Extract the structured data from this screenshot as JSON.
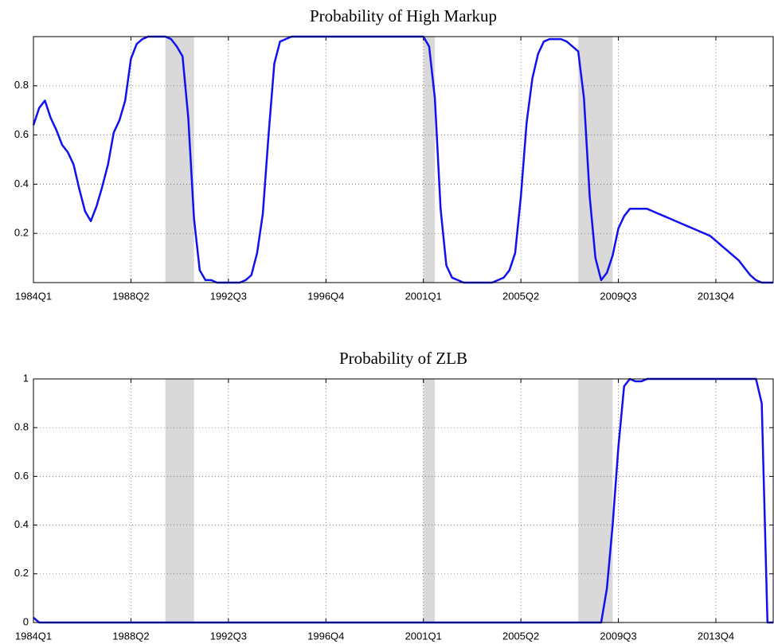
{
  "chart_data": [
    {
      "type": "line",
      "title": "Probability of High Markup",
      "categories": [
        "1984Q1",
        "1984Q2",
        "1984Q3",
        "1984Q4",
        "1985Q1",
        "1985Q2",
        "1985Q3",
        "1985Q4",
        "1986Q1",
        "1986Q2",
        "1986Q3",
        "1986Q4",
        "1987Q1",
        "1987Q2",
        "1987Q3",
        "1987Q4",
        "1988Q1",
        "1988Q2",
        "1988Q3",
        "1988Q4",
        "1989Q1",
        "1989Q2",
        "1989Q3",
        "1989Q4",
        "1990Q1",
        "1990Q2",
        "1990Q3",
        "1990Q4",
        "1991Q1",
        "1991Q2",
        "1991Q3",
        "1991Q4",
        "1992Q1",
        "1992Q2",
        "1992Q3",
        "1992Q4",
        "1993Q1",
        "1993Q2",
        "1993Q3",
        "1993Q4",
        "1994Q1",
        "1994Q2",
        "1994Q3",
        "1994Q4",
        "1995Q1",
        "1995Q2",
        "1995Q3",
        "1995Q4",
        "1996Q1",
        "1996Q2",
        "1996Q3",
        "1996Q4",
        "1997Q1",
        "1997Q2",
        "1997Q3",
        "1997Q4",
        "1998Q1",
        "1998Q2",
        "1998Q3",
        "1998Q4",
        "1999Q1",
        "1999Q2",
        "1999Q3",
        "1999Q4",
        "2000Q1",
        "2000Q2",
        "2000Q3",
        "2000Q4",
        "2001Q1",
        "2001Q2",
        "2001Q3",
        "2001Q4",
        "2002Q1",
        "2002Q2",
        "2002Q3",
        "2002Q4",
        "2003Q1",
        "2003Q2",
        "2003Q3",
        "2003Q4",
        "2004Q1",
        "2004Q2",
        "2004Q3",
        "2004Q4",
        "2005Q1",
        "2005Q2",
        "2005Q3",
        "2005Q4",
        "2006Q1",
        "2006Q2",
        "2006Q3",
        "2006Q4",
        "2007Q1",
        "2007Q2",
        "2007Q3",
        "2007Q4",
        "2008Q1",
        "2008Q2",
        "2008Q3",
        "2008Q4",
        "2009Q1",
        "2009Q2",
        "2009Q3",
        "2009Q4",
        "2010Q1",
        "2010Q2",
        "2010Q3",
        "2010Q4",
        "2011Q1",
        "2011Q2",
        "2011Q3",
        "2011Q4",
        "2012Q1",
        "2012Q2",
        "2012Q3",
        "2012Q4",
        "2013Q1",
        "2013Q2",
        "2013Q3",
        "2013Q4",
        "2014Q1",
        "2014Q2",
        "2014Q3",
        "2014Q4",
        "2015Q1",
        "2015Q2",
        "2015Q3",
        "2015Q4",
        "2016Q1",
        "2016Q2"
      ],
      "values": [
        0.64,
        0.71,
        0.74,
        0.67,
        0.62,
        0.56,
        0.53,
        0.48,
        0.38,
        0.29,
        0.25,
        0.31,
        0.39,
        0.48,
        0.61,
        0.66,
        0.74,
        0.91,
        0.97,
        0.99,
        1,
        1,
        1,
        1,
        0.99,
        0.96,
        0.92,
        0.67,
        0.26,
        0.05,
        0.01,
        0.01,
        0,
        0,
        0,
        0,
        0,
        0.01,
        0.03,
        0.12,
        0.28,
        0.6,
        0.89,
        0.98,
        0.99,
        1,
        1,
        1,
        1,
        1,
        1,
        1,
        1,
        1,
        1,
        1,
        1,
        1,
        1,
        1,
        1,
        1,
        1,
        1,
        1,
        1,
        1,
        1,
        1,
        0.96,
        0.75,
        0.3,
        0.07,
        0.02,
        0.01,
        0,
        0,
        0,
        0,
        0,
        0,
        0.01,
        0.02,
        0.05,
        0.12,
        0.35,
        0.65,
        0.83,
        0.93,
        0.98,
        0.99,
        0.99,
        0.99,
        0.98,
        0.96,
        0.94,
        0.75,
        0.35,
        0.1,
        0.01,
        0.04,
        0.11,
        0.22,
        0.27,
        0.3,
        0.3,
        0.3,
        0.3,
        0.29,
        0.28,
        0.27,
        0.26,
        0.25,
        0.24,
        0.23,
        0.22,
        0.21,
        0.2,
        0.19,
        0.17,
        0.15,
        0.13,
        0.11,
        0.09,
        0.06,
        0.03,
        0.01,
        0,
        0,
        0
      ],
      "color": "#1010f0",
      "shaded": [
        [
          "1989Q4",
          "1991Q1"
        ],
        [
          "2001Q1",
          "2001Q3"
        ],
        [
          "2007Q4",
          "2009Q2"
        ]
      ],
      "shade_color": "#d9d9d9",
      "ylim": [
        0,
        1
      ],
      "yticks": [
        0.2,
        0.4,
        0.6,
        0.8
      ],
      "xticks": [
        "1984Q1",
        "1988Q2",
        "1992Q3",
        "1996Q4",
        "2001Q1",
        "2005Q2",
        "2009Q3",
        "2013Q4"
      ],
      "grid": true
    },
    {
      "type": "line",
      "title": "Probability of ZLB",
      "categories": [
        "1984Q1",
        "1984Q2",
        "1984Q3",
        "1984Q4",
        "1985Q1",
        "1985Q2",
        "1985Q3",
        "1985Q4",
        "1986Q1",
        "1986Q2",
        "1986Q3",
        "1986Q4",
        "1987Q1",
        "1987Q2",
        "1987Q3",
        "1987Q4",
        "1988Q1",
        "1988Q2",
        "1988Q3",
        "1988Q4",
        "1989Q1",
        "1989Q2",
        "1989Q3",
        "1989Q4",
        "1990Q1",
        "1990Q2",
        "1990Q3",
        "1990Q4",
        "1991Q1",
        "1991Q2",
        "1991Q3",
        "1991Q4",
        "1992Q1",
        "1992Q2",
        "1992Q3",
        "1992Q4",
        "1993Q1",
        "1993Q2",
        "1993Q3",
        "1993Q4",
        "1994Q1",
        "1994Q2",
        "1994Q3",
        "1994Q4",
        "1995Q1",
        "1995Q2",
        "1995Q3",
        "1995Q4",
        "1996Q1",
        "1996Q2",
        "1996Q3",
        "1996Q4",
        "1997Q1",
        "1997Q2",
        "1997Q3",
        "1997Q4",
        "1998Q1",
        "1998Q2",
        "1998Q3",
        "1998Q4",
        "1999Q1",
        "1999Q2",
        "1999Q3",
        "1999Q4",
        "2000Q1",
        "2000Q2",
        "2000Q3",
        "2000Q4",
        "2001Q1",
        "2001Q2",
        "2001Q3",
        "2001Q4",
        "2002Q1",
        "2002Q2",
        "2002Q3",
        "2002Q4",
        "2003Q1",
        "2003Q2",
        "2003Q3",
        "2003Q4",
        "2004Q1",
        "2004Q2",
        "2004Q3",
        "2004Q4",
        "2005Q1",
        "2005Q2",
        "2005Q3",
        "2005Q4",
        "2006Q1",
        "2006Q2",
        "2006Q3",
        "2006Q4",
        "2007Q1",
        "2007Q2",
        "2007Q3",
        "2007Q4",
        "2008Q1",
        "2008Q2",
        "2008Q3",
        "2008Q4",
        "2009Q1",
        "2009Q2",
        "2009Q3",
        "2009Q4",
        "2010Q1",
        "2010Q2",
        "2010Q3",
        "2010Q4",
        "2011Q1",
        "2011Q2",
        "2011Q3",
        "2011Q4",
        "2012Q1",
        "2012Q2",
        "2012Q3",
        "2012Q4",
        "2013Q1",
        "2013Q2",
        "2013Q3",
        "2013Q4",
        "2014Q1",
        "2014Q2",
        "2014Q3",
        "2014Q4",
        "2015Q1",
        "2015Q2",
        "2015Q3",
        "2015Q4",
        "2016Q1",
        "2016Q2"
      ],
      "values": [
        0.02,
        0,
        0,
        0,
        0,
        0,
        0,
        0,
        0,
        0,
        0,
        0,
        0,
        0,
        0,
        0,
        0,
        0,
        0,
        0,
        0,
        0,
        0,
        0,
        0,
        0,
        0,
        0,
        0,
        0,
        0,
        0,
        0,
        0,
        0,
        0,
        0,
        0,
        0,
        0,
        0,
        0,
        0,
        0,
        0,
        0,
        0,
        0,
        0,
        0,
        0,
        0,
        0,
        0,
        0,
        0,
        0,
        0,
        0,
        0,
        0,
        0,
        0,
        0,
        0,
        0,
        0,
        0,
        0,
        0,
        0,
        0,
        0,
        0,
        0,
        0,
        0,
        0,
        0,
        0,
        0,
        0,
        0,
        0,
        0,
        0,
        0,
        0,
        0,
        0,
        0,
        0,
        0,
        0,
        0,
        0,
        0,
        0,
        0,
        0,
        0.14,
        0.4,
        0.72,
        0.97,
        1,
        0.99,
        0.99,
        1,
        1,
        1,
        1,
        1,
        1,
        1,
        1,
        1,
        1,
        1,
        1,
        1,
        1,
        1,
        1,
        1,
        1,
        1,
        1,
        0.9,
        0,
        0
      ],
      "color": "#1010f0",
      "shaded": [
        [
          "1989Q4",
          "1991Q1"
        ],
        [
          "2001Q1",
          "2001Q3"
        ],
        [
          "2007Q4",
          "2009Q2"
        ]
      ],
      "shade_color": "#d9d9d9",
      "ylim": [
        0,
        1
      ],
      "yticks": [
        0,
        0.2,
        0.4,
        0.6,
        0.8,
        1
      ],
      "xticks": [
        "1984Q1",
        "1988Q2",
        "1992Q3",
        "1996Q4",
        "2001Q1",
        "2005Q2",
        "2009Q3",
        "2013Q4"
      ],
      "grid": true
    }
  ]
}
